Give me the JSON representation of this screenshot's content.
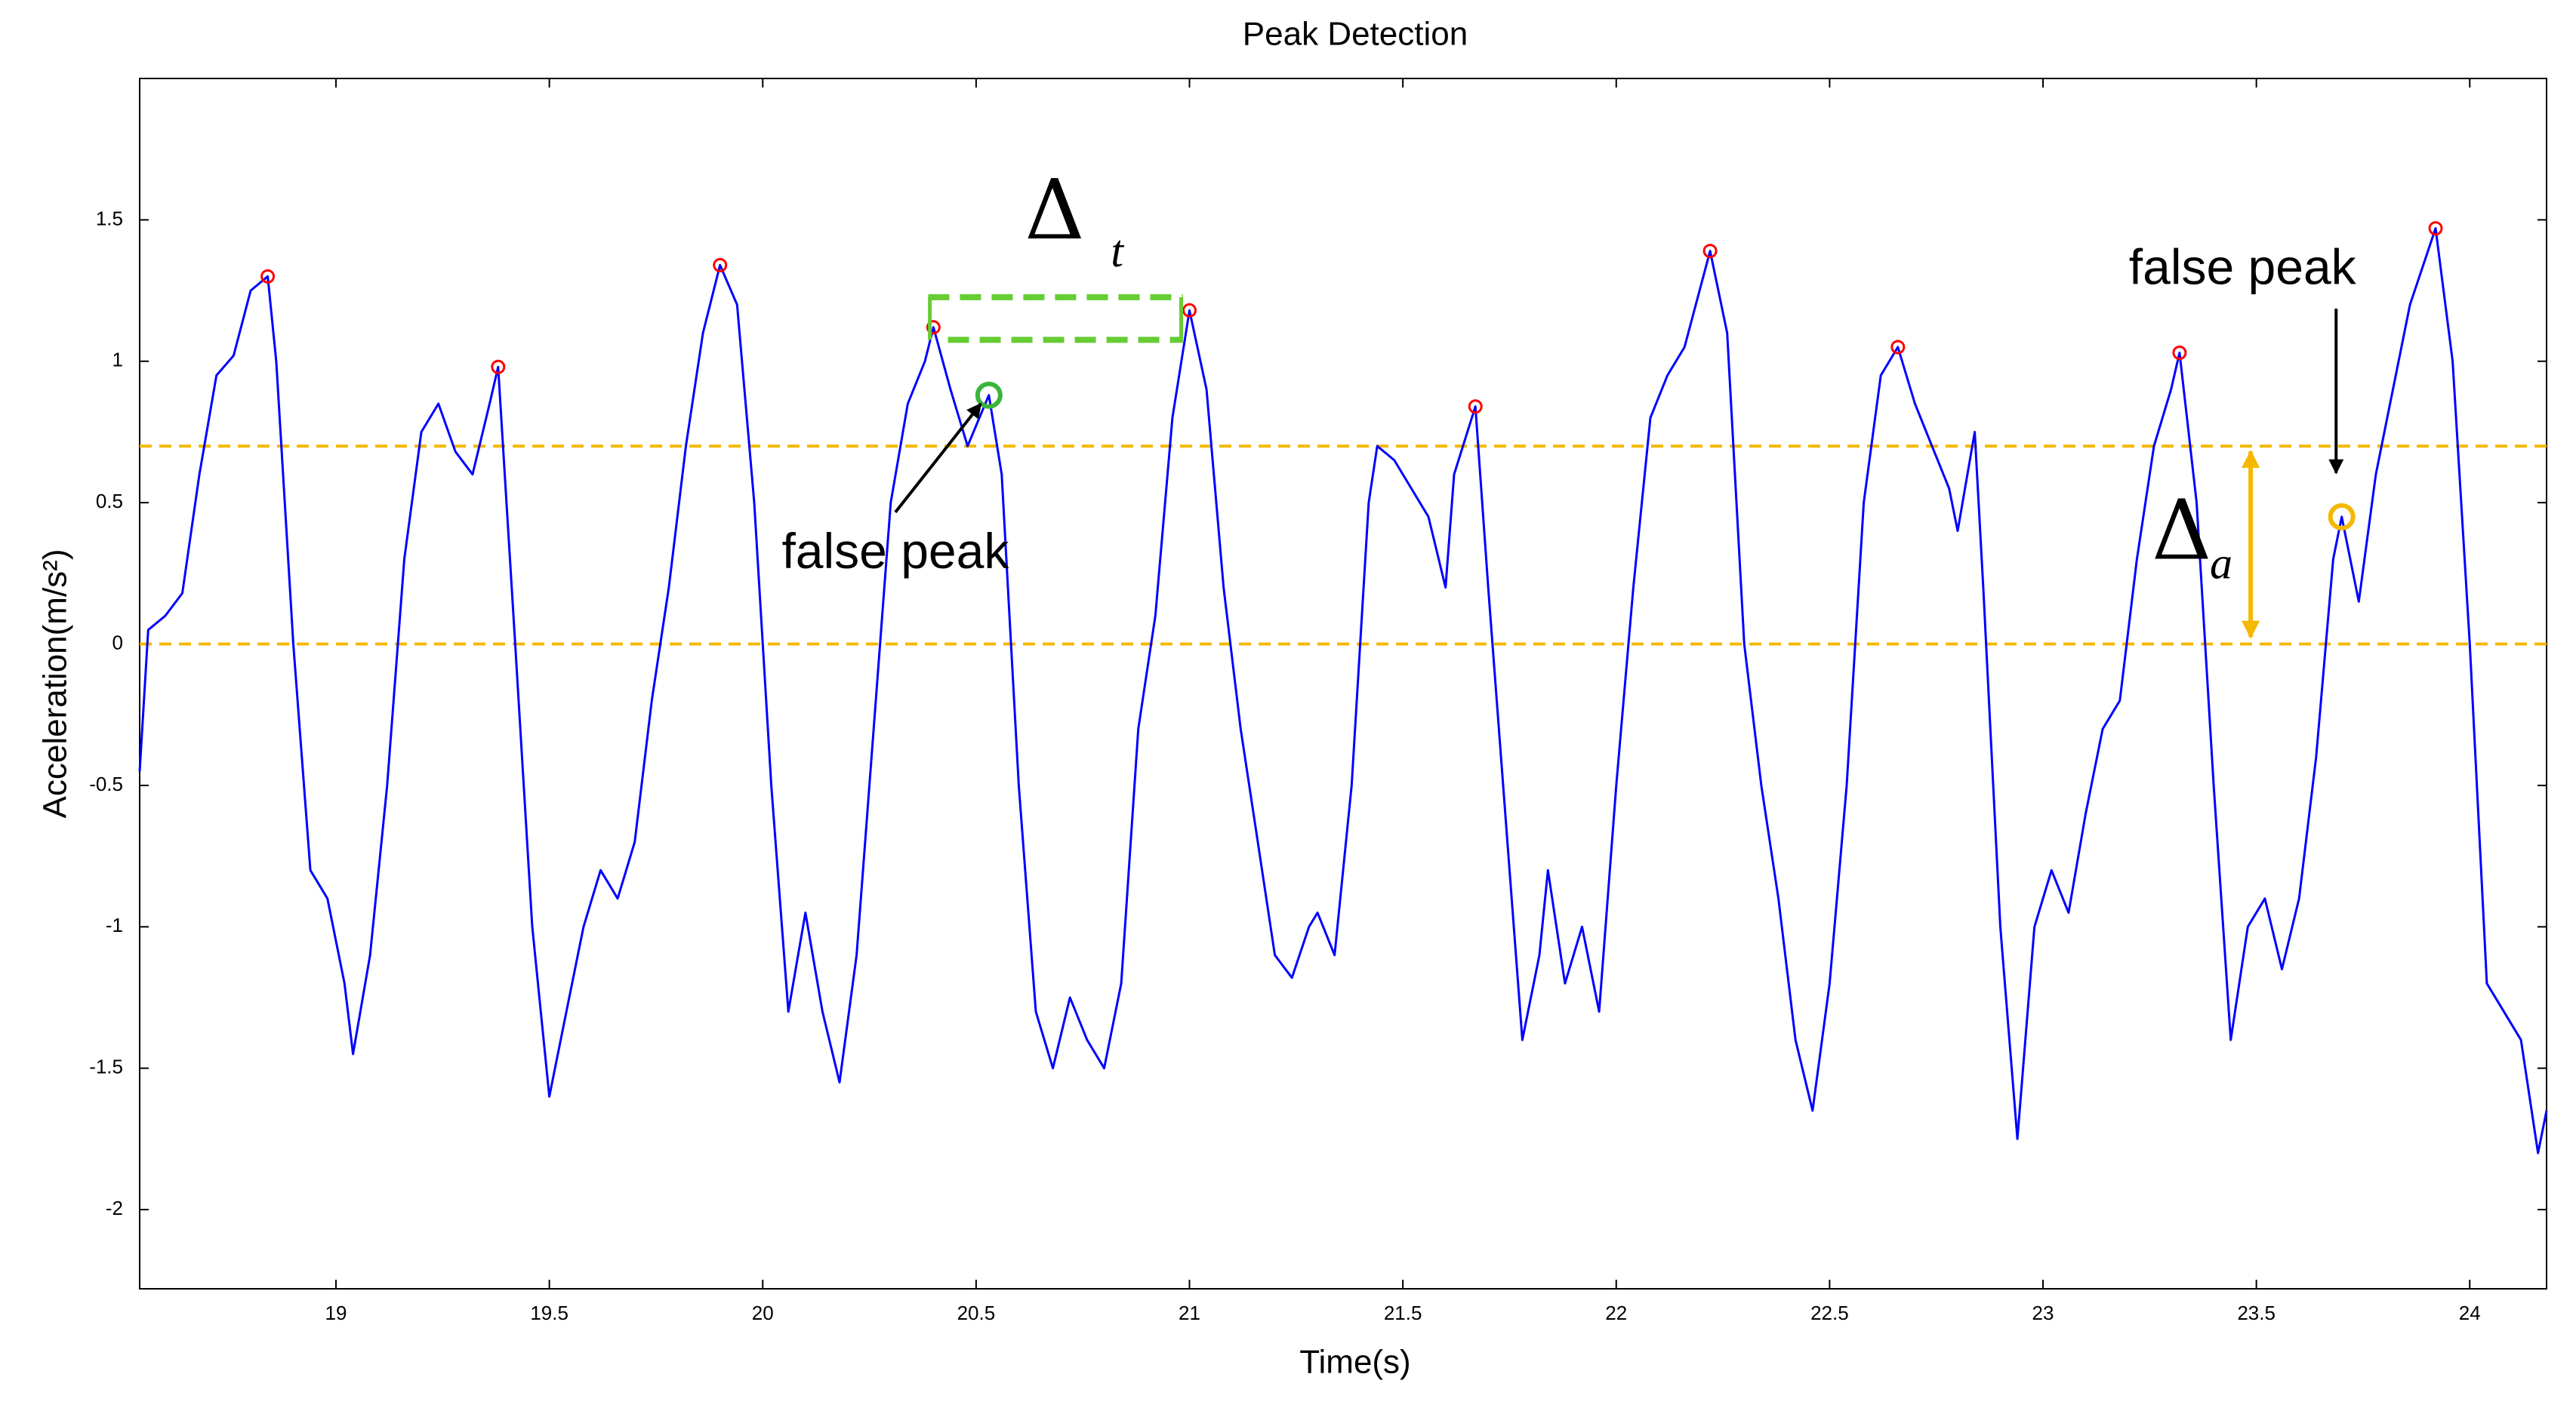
{
  "chart_data": {
    "type": "line",
    "title": "Peak Detection",
    "x_label": "Time(s)",
    "y_label": "Acceleration(m/s²)",
    "xlim": [
      18.54,
      24.18
    ],
    "ylim": [
      -2.28,
      2.0
    ],
    "xticks": [
      19,
      19.5,
      20,
      20.5,
      21,
      21.5,
      22,
      22.5,
      23,
      23.5,
      24
    ],
    "yticks": [
      -2,
      -1.5,
      -1,
      -0.5,
      0,
      0.5,
      1,
      1.5
    ],
    "grid": false,
    "series": [
      {
        "color": "#0000ff",
        "x": [
          18.54,
          18.56,
          18.6,
          18.64,
          18.68,
          18.72,
          18.76,
          18.8,
          18.84,
          18.86,
          18.9,
          18.94,
          18.98,
          19.02,
          19.04,
          19.08,
          19.12,
          19.16,
          19.2,
          19.24,
          19.28,
          19.32,
          19.36,
          19.38,
          19.42,
          19.46,
          19.5,
          19.54,
          19.58,
          19.62,
          19.66,
          19.7,
          19.74,
          19.78,
          19.82,
          19.86,
          19.9,
          19.94,
          19.98,
          20.02,
          20.06,
          20.1,
          20.14,
          20.18,
          20.22,
          20.26,
          20.3,
          20.34,
          20.38,
          20.4,
          20.44,
          20.48,
          20.53,
          20.56,
          20.6,
          20.64,
          20.68,
          20.72,
          20.76,
          20.8,
          20.84,
          20.88,
          20.92,
          20.96,
          21.0,
          21.04,
          21.08,
          21.12,
          21.16,
          21.2,
          21.24,
          21.28,
          21.3,
          21.34,
          21.38,
          21.42,
          21.44,
          21.48,
          21.52,
          21.56,
          21.6,
          21.62,
          21.67,
          21.7,
          21.74,
          21.78,
          21.82,
          21.84,
          21.88,
          21.92,
          21.96,
          22.0,
          22.04,
          22.08,
          22.12,
          22.16,
          22.22,
          22.26,
          22.3,
          22.34,
          22.38,
          22.42,
          22.46,
          22.5,
          22.54,
          22.58,
          22.62,
          22.66,
          22.7,
          22.74,
          22.78,
          22.8,
          22.84,
          22.86,
          22.9,
          22.94,
          22.98,
          23.02,
          23.06,
          23.1,
          23.14,
          23.18,
          23.22,
          23.26,
          23.3,
          23.32,
          23.36,
          23.4,
          23.44,
          23.48,
          23.52,
          23.56,
          23.6,
          23.64,
          23.68,
          23.7,
          23.74,
          23.78,
          23.82,
          23.86,
          23.92,
          23.96,
          24.0,
          24.04,
          24.08,
          24.12,
          24.16,
          24.18
        ],
        "values": [
          -0.45,
          0.05,
          0.1,
          0.18,
          0.6,
          0.95,
          1.02,
          1.25,
          1.3,
          1.0,
          0.0,
          -0.8,
          -0.9,
          -1.2,
          -1.45,
          -1.1,
          -0.5,
          0.3,
          0.75,
          0.85,
          0.68,
          0.6,
          0.85,
          0.98,
          0.0,
          -1.0,
          -1.6,
          -1.3,
          -1.0,
          -0.8,
          -0.9,
          -0.7,
          -0.2,
          0.2,
          0.7,
          1.1,
          1.34,
          1.2,
          0.5,
          -0.5,
          -1.3,
          -0.95,
          -1.3,
          -1.55,
          -1.1,
          -0.3,
          0.5,
          0.85,
          1.0,
          1.12,
          0.9,
          0.7,
          0.88,
          0.6,
          -0.5,
          -1.3,
          -1.5,
          -1.25,
          -1.4,
          -1.5,
          -1.2,
          -0.3,
          0.1,
          0.8,
          1.18,
          0.9,
          0.2,
          -0.3,
          -0.7,
          -1.1,
          -1.18,
          -1.0,
          -0.95,
          -1.1,
          -0.5,
          0.5,
          0.7,
          0.65,
          0.55,
          0.45,
          0.2,
          0.6,
          0.84,
          0.2,
          -0.6,
          -1.4,
          -1.1,
          -0.8,
          -1.2,
          -1.0,
          -1.3,
          -0.5,
          0.2,
          0.8,
          0.95,
          1.05,
          1.39,
          1.1,
          0.0,
          -0.5,
          -0.9,
          -1.4,
          -1.65,
          -1.2,
          -0.5,
          0.5,
          0.95,
          1.05,
          0.85,
          0.7,
          0.55,
          0.4,
          0.75,
          0.2,
          -1.0,
          -1.75,
          -1.0,
          -0.8,
          -0.95,
          -0.6,
          -0.3,
          -0.2,
          0.3,
          0.7,
          0.9,
          1.03,
          0.5,
          -0.5,
          -1.4,
          -1.0,
          -0.9,
          -1.15,
          -0.9,
          -0.4,
          0.3,
          0.45,
          0.15,
          0.6,
          0.9,
          1.2,
          1.47,
          1.0,
          0.0,
          -1.2,
          -1.3,
          -1.4,
          -1.8,
          -1.65
        ]
      }
    ],
    "peaks": {
      "color": "#ff0000",
      "x": [
        18.84,
        19.38,
        19.9,
        20.4,
        21.0,
        21.67,
        22.22,
        22.66,
        23.32,
        23.92
      ],
      "values": [
        1.3,
        0.98,
        1.34,
        1.12,
        1.18,
        0.84,
        1.39,
        1.05,
        1.03,
        1.47
      ]
    },
    "false_peaks": [
      {
        "color": "#3cb43c",
        "x": 20.53,
        "value": 0.88
      },
      {
        "color": "#f5b800",
        "x": 23.7,
        "value": 0.45
      }
    ],
    "thresholds": {
      "color": "#f5b800",
      "values": [
        0.7,
        0
      ]
    },
    "annotations": [
      "false peak",
      "false peak"
    ],
    "delta_t": [
      "Δ",
      "t"
    ],
    "delta_a": [
      "Δ",
      "a"
    ]
  }
}
